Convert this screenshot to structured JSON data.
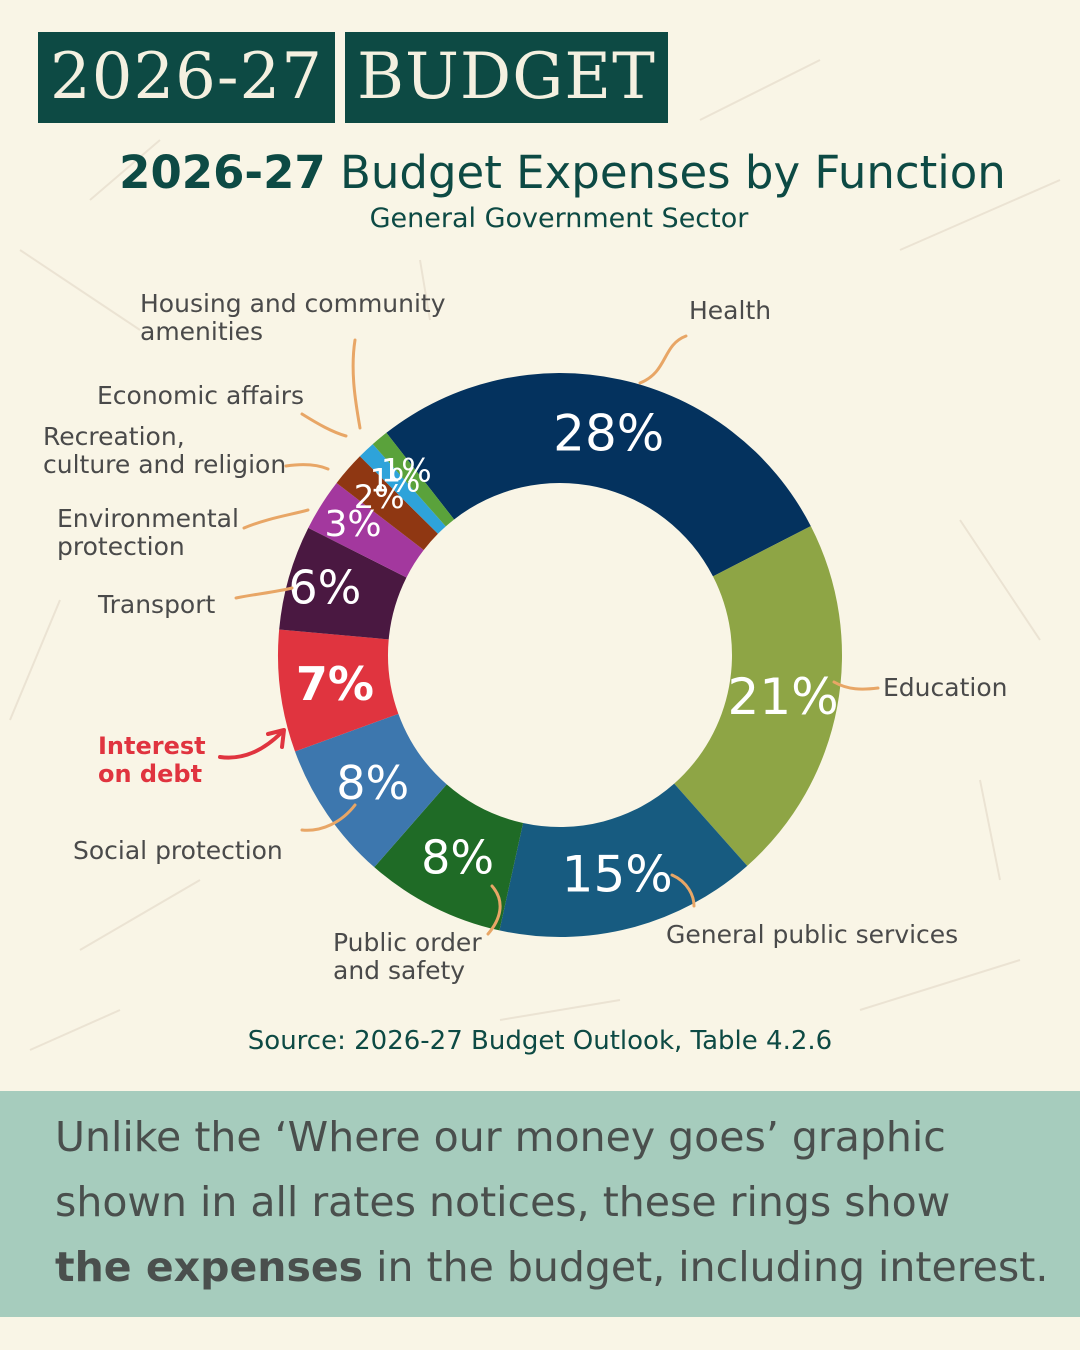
{
  "header": {
    "badge_year": "2026-27",
    "badge_word": "BUDGET"
  },
  "title_bold": "2026-27",
  "title_rest": "Budget Expenses by Function",
  "subtitle": "General Government Sector",
  "source": "Source: 2026-27 Budget Outlook, Table 4.2.6",
  "footer": {
    "line1": "Unlike the ‘Where our money goes’ graphic",
    "line2": "shown in all rates notices, these rings show",
    "bold": "the expenses",
    "line3_rest": " in the budget, including interest."
  },
  "colors": {
    "brand_green": "#0d4a44",
    "background": "#f9f5e6",
    "footer_band": "#a6ccbd",
    "leader": "#e8a666",
    "highlight_red": "#e0343f"
  },
  "chart_data": {
    "type": "pie",
    "style": "donut",
    "title": "2026-27 Budget Expenses by Function",
    "subtitle": "General Government Sector",
    "unit": "%",
    "slices": [
      {
        "label": "Health",
        "value": 28,
        "value_label": "28%",
        "color": "#04325e"
      },
      {
        "label": "Education",
        "value": 21,
        "value_label": "21%",
        "color": "#8ea545"
      },
      {
        "label": "General public services",
        "value": 15,
        "value_label": "15%",
        "color": "#175b80"
      },
      {
        "label": "Public order and safety",
        "value": 8,
        "value_label": "8%",
        "color": "#1f6b26"
      },
      {
        "label": "Social protection",
        "value": 8,
        "value_label": "8%",
        "color": "#3d77ae"
      },
      {
        "label": "Interest on debt",
        "value": 7,
        "value_label": "7%",
        "color": "#e0343f",
        "highlight": true
      },
      {
        "label": "Transport",
        "value": 6,
        "value_label": "6%",
        "color": "#4a1841"
      },
      {
        "label": "Environmental protection",
        "value": 3,
        "value_label": "3%",
        "color": "#a3389e"
      },
      {
        "label": "Recreation, culture and religion",
        "value": 2,
        "value_label": "2%",
        "color": "#8f3712"
      },
      {
        "label": "Economic affairs",
        "value": 1,
        "value_label": "1%",
        "color": "#2ea3da"
      },
      {
        "label": "Housing and community amenities",
        "value": 1,
        "value_label": "1%",
        "color": "#5aa23b"
      }
    ],
    "labels_display": {
      "health": [
        "Health"
      ],
      "education": [
        "Education"
      ],
      "general_public_services": [
        "General public services"
      ],
      "public_order": [
        "Public order",
        "and safety"
      ],
      "social_protection": [
        "Social protection"
      ],
      "interest": [
        "Interest",
        "on debt"
      ],
      "transport": [
        "Transport"
      ],
      "environmental": [
        "Environmental",
        "protection"
      ],
      "recreation": [
        "Recreation,",
        "culture and religion"
      ],
      "economic": [
        "Economic affairs"
      ],
      "housing": [
        "Housing and community",
        "amenities"
      ]
    }
  }
}
